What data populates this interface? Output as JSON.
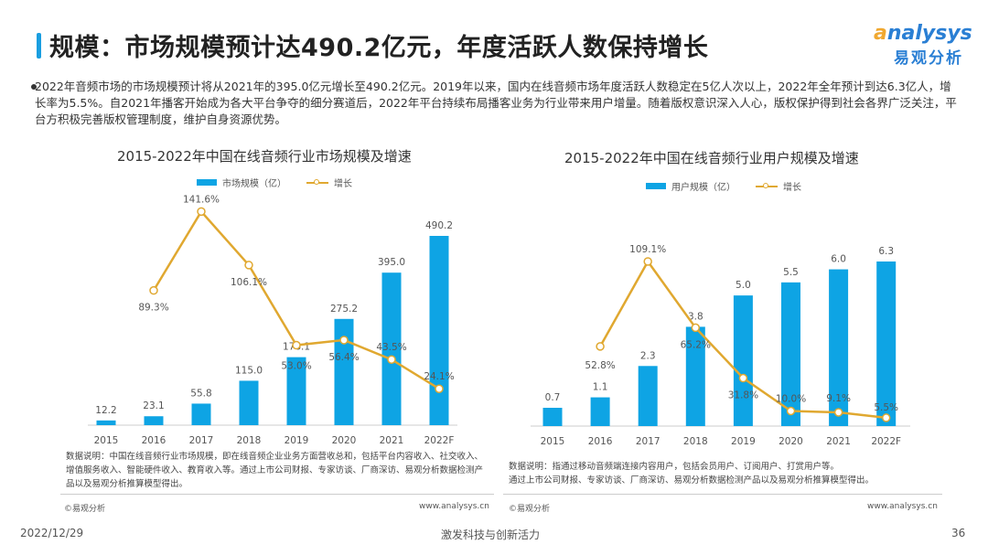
{
  "title": "规模：市场规模预计达490.2亿元，年度活跃人数保持增长",
  "logo": {
    "en": "analysys",
    "cn": "易观分析"
  },
  "summary": "2022年音频市场的市场规模预计将从2021年的395.0亿元增长至490.2亿元。2019年以来，国内在线音频市场年度活跃人数稳定在5亿人次以上，2022年全年预计到达6.3亿人，增长率为5.5%。自2021年播客开始成为各大平台争夺的细分赛道后，2022年平台持续布局播客业务为行业带来用户增量。随着版权意识深入人心，版权保护得到社会各界广泛关注，平台方积极完善版权管理制度，维护自身资源优势。",
  "colors": {
    "bar": "#0ea4e4",
    "line": "#e0a830",
    "accent": "#1a9ee0"
  },
  "chart_data": [
    {
      "type": "bar+line",
      "title": "2015-2022年中国在线音频行业市场规模及增速",
      "categories": [
        "2015",
        "2016",
        "2017",
        "2018",
        "2019",
        "2020",
        "2021",
        "2022F"
      ],
      "series": [
        {
          "name": "市场规模（亿）",
          "type": "bar",
          "values": [
            12.2,
            23.1,
            55.8,
            115.0,
            176.1,
            275.2,
            395.0,
            490.2
          ],
          "labels": [
            "12.2",
            "23.1",
            "55.8",
            "115.0",
            "176.1",
            "275.2",
            "395.0",
            "490.2"
          ]
        },
        {
          "name": "增长",
          "type": "line",
          "values": [
            null,
            89.3,
            141.6,
            106.1,
            53.0,
            56.4,
            43.5,
            24.1
          ],
          "labels": [
            "",
            "89.3%",
            "141.6%",
            "106.1%",
            "53.0%",
            "56.4%",
            "43.5%",
            "24.1%"
          ]
        }
      ],
      "note": "数据说明：中国在线音频行业市场规模，即在线音频企业业务方面营收总和，包括平台内容收入、社交收入、增值服务收入、智能硬件收入、教育收入等。通过上市公司财报、专家访谈、厂商深访、易观分析数据检测产品以及易观分析推算模型得出。",
      "source": "©易观分析",
      "url": "www.analysys.cn"
    },
    {
      "type": "bar+line",
      "title": "2015-2022年中国在线音频行业用户规模及增速",
      "categories": [
        "2015",
        "2016",
        "2017",
        "2018",
        "2019",
        "2020",
        "2021",
        "2022F"
      ],
      "series": [
        {
          "name": "用户规模（亿）",
          "type": "bar",
          "values": [
            0.7,
            1.1,
            2.3,
            3.8,
            5.0,
            5.5,
            6.0,
            6.3
          ],
          "labels": [
            "0.7",
            "1.1",
            "2.3",
            "3.8",
            "5.0",
            "5.5",
            "6.0",
            "6.3"
          ]
        },
        {
          "name": "增长",
          "type": "line",
          "values": [
            null,
            52.8,
            109.1,
            65.2,
            31.8,
            10.0,
            9.1,
            5.5
          ],
          "labels": [
            "",
            "52.8%",
            "109.1%",
            "65.2%",
            "31.8%",
            "10.0%",
            "9.1%",
            "5.5%"
          ]
        }
      ],
      "note1": "数据说明：指通过移动音频端连接内容用户，包括会员用户、订阅用户、打赏用户等。",
      "note2": "通过上市公司财报、专家访谈、厂商深访、易观分析数据检测产品以及易观分析推算模型得出。",
      "source": "©易观分析",
      "url": "www.analysys.cn"
    }
  ],
  "footer": {
    "date": "2022/12/29",
    "slogan": "激发科技与创新活力",
    "page": "36"
  }
}
